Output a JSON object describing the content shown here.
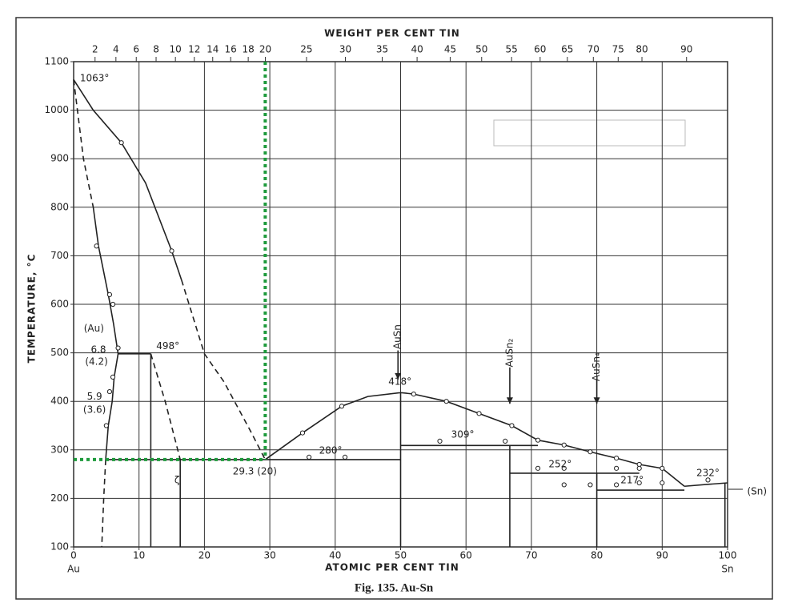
{
  "chart_data": {
    "type": "line",
    "caption": "Fig. 135. Au-Sn",
    "xlabel": "ATOMIC PER CENT TIN",
    "x2label": "WEIGHT PER CENT TIN",
    "ylabel": "TEMPERATURE, °C",
    "xlim": [
      0,
      100
    ],
    "xticks": [
      0,
      10,
      20,
      30,
      40,
      50,
      60,
      70,
      80,
      90,
      100
    ],
    "x2ticks": [
      2,
      4,
      6,
      8,
      10,
      12,
      14,
      16,
      18,
      20,
      25,
      30,
      35,
      40,
      45,
      50,
      55,
      60,
      65,
      70,
      75,
      80,
      90
    ],
    "ylim": [
      100,
      1100
    ],
    "yticks": [
      100,
      200,
      300,
      400,
      500,
      600,
      700,
      800,
      900,
      1000,
      1100
    ],
    "grid": true,
    "end_labels": [
      "Au",
      "Sn"
    ],
    "series": [
      {
        "style": "solid",
        "color": "#222",
        "x": [
          0,
          3,
          7.3,
          11,
          15,
          16.5
        ],
        "values": [
          1063,
          1000,
          933,
          850,
          710,
          650
        ]
      },
      {
        "style": "dashed",
        "color": "#222",
        "x": [
          16.5,
          20,
          23,
          27,
          29.3
        ],
        "values": [
          650,
          498,
          440,
          340,
          280
        ]
      },
      {
        "style": "dashed",
        "color": "#222",
        "x": [
          0,
          1.5,
          3
        ],
        "values": [
          1063,
          900,
          800
        ]
      },
      {
        "style": "solid",
        "color": "#222",
        "x": [
          3,
          3.8,
          5.3,
          6.1,
          6.8,
          6.2,
          5.9,
          5.3,
          4.9
        ],
        "values": [
          800,
          720,
          620,
          560,
          498,
          450,
          400,
          350,
          280
        ]
      },
      {
        "style": "dashed",
        "color": "#222",
        "x": [
          4.9,
          4.6,
          4.3
        ],
        "values": [
          280,
          200,
          100
        ]
      },
      {
        "style": "solid",
        "color": "#222",
        "x": [
          6.8,
          11.8
        ],
        "values": [
          498,
          498
        ]
      },
      {
        "style": "solid",
        "color": "#222",
        "x": [
          11.8,
          11.8
        ],
        "values": [
          498,
          100
        ]
      },
      {
        "style": "dashed",
        "color": "#222",
        "x": [
          11.8,
          14,
          16.3
        ],
        "values": [
          498,
          400,
          280
        ]
      },
      {
        "style": "solid",
        "color": "#222",
        "x": [
          16.3,
          16.3
        ],
        "values": [
          280,
          100
        ]
      },
      {
        "style": "solid",
        "color": "#222",
        "x": [
          4.9,
          50
        ],
        "values": [
          280,
          280
        ]
      },
      {
        "style": "solid",
        "color": "#222",
        "x": [
          29.3,
          35,
          41,
          45,
          50,
          52,
          57,
          62,
          67,
          71,
          75,
          79,
          83,
          86.5,
          90,
          93.4
        ],
        "values": [
          280,
          335,
          390,
          410,
          418,
          415,
          400,
          375,
          350,
          320,
          310,
          296,
          283,
          270,
          262,
          225
        ]
      },
      {
        "style": "solid",
        "color": "#222",
        "x": [
          93.4,
          97,
          100
        ],
        "values": [
          225,
          229,
          232
        ]
      },
      {
        "style": "solid",
        "color": "#222",
        "x": [
          50,
          50
        ],
        "values": [
          418,
          100
        ]
      },
      {
        "style": "solid",
        "color": "#222",
        "x": [
          50,
          71
        ],
        "values": [
          309,
          309
        ]
      },
      {
        "style": "solid",
        "color": "#222",
        "x": [
          66.7,
          66.7
        ],
        "values": [
          309,
          100
        ]
      },
      {
        "style": "solid",
        "color": "#222",
        "x": [
          66.7,
          86.5
        ],
        "values": [
          252,
          252
        ]
      },
      {
        "style": "solid",
        "color": "#222",
        "x": [
          80,
          80
        ],
        "values": [
          252,
          100
        ]
      },
      {
        "style": "solid",
        "color": "#222",
        "x": [
          80,
          93.4
        ],
        "values": [
          217,
          217
        ]
      },
      {
        "style": "solid",
        "color": "#222",
        "x": [
          99.6,
          99.6
        ],
        "values": [
          232,
          100
        ]
      },
      {
        "style": "dotted",
        "color": "#1e9a3c",
        "x": [
          29.3,
          29.3
        ],
        "values": [
          1100,
          280
        ]
      },
      {
        "style": "dotted",
        "color": "#1e9a3c",
        "x": [
          0,
          29.3
        ],
        "values": [
          280,
          280
        ]
      },
      {
        "style": "markers",
        "color": "#222",
        "x": [
          7.3,
          15,
          3.5,
          5.5,
          6,
          6.8,
          6,
          5.5,
          5,
          35,
          41,
          52,
          57,
          62,
          67,
          71,
          75,
          79,
          83,
          86.5,
          90,
          36,
          41.5,
          56,
          66,
          71,
          75,
          75,
          79,
          83,
          83,
          86.5,
          86.5,
          90,
          97
        ],
        "values": [
          933,
          710,
          720,
          620,
          600,
          510,
          450,
          420,
          350,
          335,
          390,
          415,
          400,
          375,
          350,
          320,
          310,
          296,
          283,
          270,
          262,
          285,
          285,
          318,
          318,
          262,
          228,
          262,
          228,
          228,
          262,
          262,
          232,
          232,
          238
        ]
      },
      {
        "style": "arrow",
        "color": "#222",
        "x": [
          49.6,
          49.6
        ],
        "values": [
          505,
          445
        ]
      },
      {
        "style": "arrow",
        "color": "#222",
        "x": [
          66.7,
          66.7
        ],
        "values": [
          470,
          395
        ]
      },
      {
        "style": "arrow",
        "color": "#222",
        "x": [
          80,
          80
        ],
        "values": [
          445,
          395
        ]
      }
    ],
    "annotations": [
      {
        "text": "1063°",
        "x": 3.2,
        "y": 1065
      },
      {
        "text": "(Au)",
        "x": 3.1,
        "y": 550
      },
      {
        "text": "6.8",
        "x": 3.8,
        "y": 506
      },
      {
        "text": "(4.2)",
        "x": 3.5,
        "y": 481
      },
      {
        "text": "5.9",
        "x": 3.2,
        "y": 409
      },
      {
        "text": "(3.6)",
        "x": 3.2,
        "y": 382
      },
      {
        "text": "498°",
        "x": 14.4,
        "y": 513
      },
      {
        "text": "ζ",
        "x": 15.8,
        "y": 237
      },
      {
        "text": "29.3 (20)",
        "x": 27.7,
        "y": 255
      },
      {
        "text": "280°",
        "x": 39.3,
        "y": 298
      },
      {
        "text": "418°",
        "x": 49.9,
        "y": 440
      },
      {
        "text": "309°",
        "x": 59.5,
        "y": 331
      },
      {
        "text": "252°",
        "x": 74.4,
        "y": 270
      },
      {
        "text": "217°",
        "x": 85.4,
        "y": 237
      },
      {
        "text": "232°",
        "x": 97,
        "y": 252
      },
      {
        "text": "(Sn)",
        "x": 104.5,
        "y": 214
      }
    ],
    "compounds": [
      {
        "text": "AuSn",
        "x": 49.6,
        "y": 533
      },
      {
        "text": "AuSn₂",
        "x": 66.7,
        "y": 500
      },
      {
        "text": "AuSn₄",
        "x": 80,
        "y": 471
      }
    ]
  }
}
